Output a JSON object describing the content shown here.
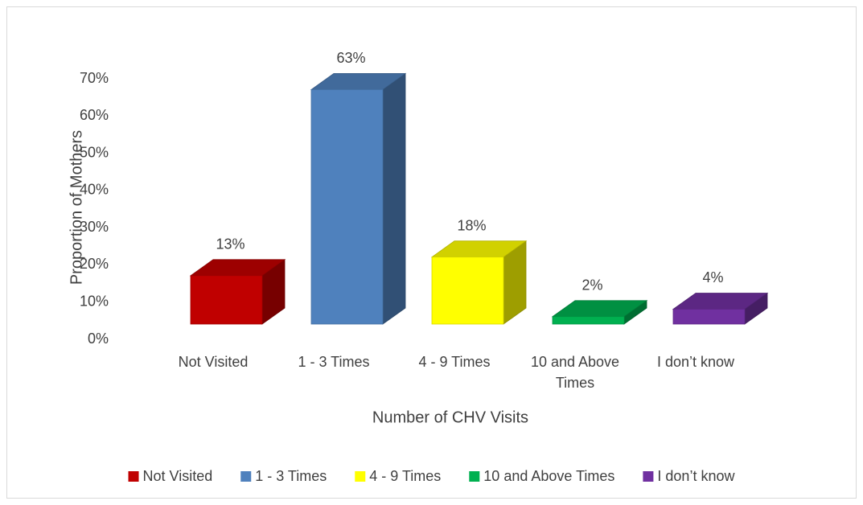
{
  "chart_data": {
    "type": "bar3d",
    "x_label": "Number of CHV Visits",
    "y_label": "Proportion of Mothers",
    "categories": [
      "Not Visited",
      "1 - 3 Times",
      "4 - 9 Times",
      "10 and Above Times",
      "I don’t know"
    ],
    "values": [
      13,
      63,
      18,
      2,
      4
    ],
    "value_labels": [
      "13%",
      "63%",
      "18%",
      "2%",
      "4%"
    ],
    "colors": [
      "#c00000",
      "#4f81bd",
      "#ffff00",
      "#00b050",
      "#7030a0"
    ],
    "ylim": [
      0,
      70
    ],
    "yticks": [
      {
        "value": 0,
        "label": "0%"
      },
      {
        "value": 10,
        "label": "10%"
      },
      {
        "value": 20,
        "label": "20%"
      },
      {
        "value": 30,
        "label": "30%"
      },
      {
        "value": 40,
        "label": "40%"
      },
      {
        "value": 50,
        "label": "50%"
      },
      {
        "value": 60,
        "label": "60%"
      },
      {
        "value": 70,
        "label": "70%"
      }
    ],
    "legend": "bottom"
  }
}
